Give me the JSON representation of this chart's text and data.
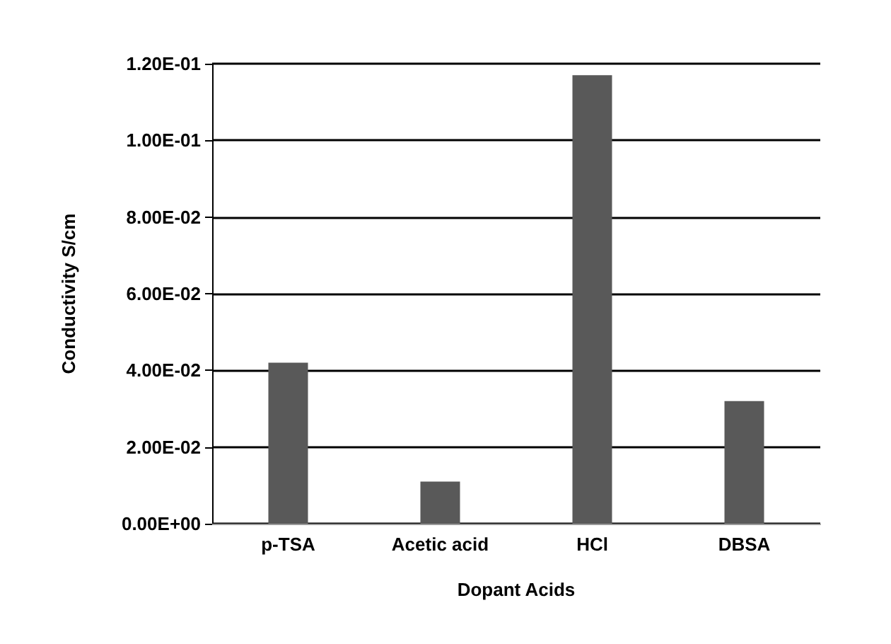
{
  "chart_data": {
    "type": "bar",
    "xlabel": "Dopant Acids",
    "ylabel": "Conductivity S/cm",
    "categories": [
      "p-TSA",
      "Acetic acid",
      "HCl",
      "DBSA"
    ],
    "values": [
      0.042,
      0.011,
      0.117,
      0.032
    ],
    "color": "#595959",
    "ylim": [
      0,
      0.12
    ],
    "yticks": [
      {
        "value": 0,
        "label": "0.00E+00"
      },
      {
        "value": 0.02,
        "label": "2.00E-02"
      },
      {
        "value": 0.04,
        "label": "4.00E-02"
      },
      {
        "value": 0.06,
        "label": "6.00E-02"
      },
      {
        "value": 0.08,
        "label": "8.00E-02"
      },
      {
        "value": 0.1,
        "label": "1.00E-01"
      },
      {
        "value": 0.12,
        "label": "1.20E-01"
      }
    ],
    "grid": "y"
  }
}
